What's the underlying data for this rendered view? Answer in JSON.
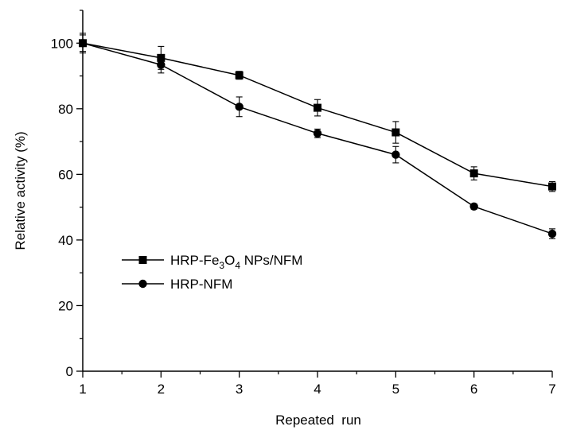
{
  "chart_data": {
    "type": "line",
    "title": "",
    "xlabel": "Repeated  run",
    "ylabel": "Relative activity (%)",
    "xlim": [
      1,
      7
    ],
    "ylim": [
      0,
      110
    ],
    "x_ticks": [
      1,
      2,
      3,
      4,
      5,
      6,
      7
    ],
    "y_ticks": [
      0,
      20,
      40,
      60,
      80,
      100
    ],
    "grid": false,
    "legend_position": "center-left",
    "series": [
      {
        "name": "HRP-Fe3O4 NPs/NFM",
        "legend_parts": [
          "HRP-Fe",
          "3",
          "O",
          "4",
          " NPs/NFM"
        ],
        "marker": "square",
        "color": "#000000",
        "x": [
          1,
          2,
          3,
          4,
          5,
          6,
          7
        ],
        "y": [
          100,
          95.5,
          90.2,
          80.3,
          72.8,
          60.3,
          56.3
        ],
        "error": [
          3.0,
          3.5,
          1.2,
          2.5,
          3.3,
          2.0,
          1.5
        ]
      },
      {
        "name": "HRP-NFM",
        "marker": "circle",
        "color": "#000000",
        "x": [
          1,
          2,
          3,
          4,
          5,
          6,
          7
        ],
        "y": [
          100,
          93.4,
          80.6,
          72.5,
          66.0,
          50.2,
          41.9
        ],
        "error": [
          2.5,
          2.5,
          3.0,
          1.3,
          2.5,
          0.8,
          1.5
        ]
      }
    ]
  }
}
